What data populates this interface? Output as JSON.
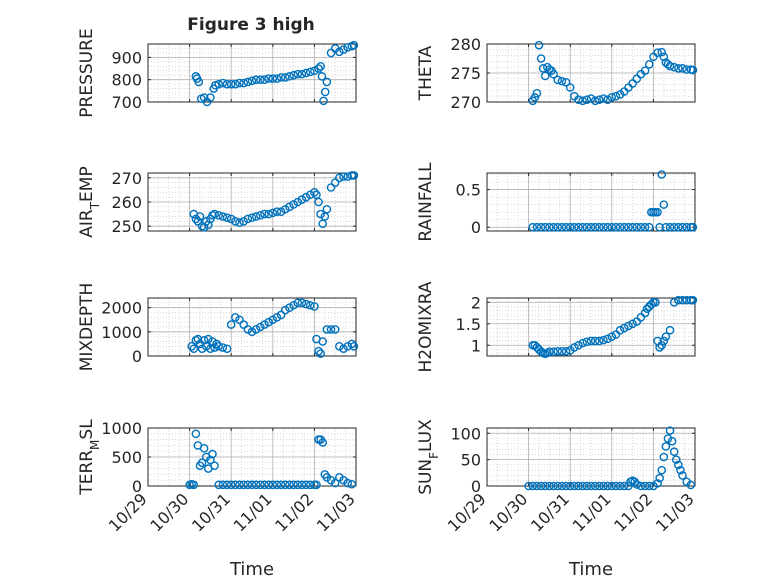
{
  "figure": {
    "title": "Figure 3 high"
  },
  "colors": {
    "marker": "#0072BD",
    "axis": "#262626",
    "grid": "#b0b0b0",
    "minor_grid": "#c8c8c8"
  },
  "time_ticks": [
    "10/29",
    "10/30",
    "10/31",
    "11/01",
    "11/02",
    "11/03"
  ],
  "chart_data": [
    {
      "type": "scatter",
      "ylabel": "PRESSURE",
      "title": "Figure 3 high",
      "xlim": [
        0,
        5
      ],
      "ylim": [
        700,
        960
      ],
      "yticks": [
        700,
        800,
        900
      ],
      "x": [
        1.15,
        1.18,
        1.22,
        1.28,
        1.35,
        1.42,
        1.5,
        1.58,
        1.62,
        1.7,
        1.8,
        1.9,
        2.0,
        2.1,
        2.2,
        2.3,
        2.4,
        2.5,
        2.6,
        2.7,
        2.8,
        2.9,
        3.0,
        3.1,
        3.2,
        3.3,
        3.4,
        3.5,
        3.6,
        3.7,
        3.8,
        3.9,
        4.0,
        4.1,
        4.15,
        4.18,
        4.22,
        4.26,
        4.3,
        4.4,
        4.5,
        4.6,
        4.7,
        4.8,
        4.9,
        4.95
      ],
      "y": [
        815,
        805,
        790,
        715,
        720,
        700,
        720,
        760,
        775,
        780,
        785,
        780,
        780,
        780,
        785,
        785,
        790,
        795,
        800,
        800,
        800,
        805,
        805,
        805,
        810,
        810,
        815,
        820,
        825,
        825,
        830,
        835,
        840,
        850,
        860,
        815,
        705,
        745,
        790,
        920,
        940,
        925,
        935,
        945,
        950,
        955
      ],
      "xlabel": "Time",
      "xtick_labels": [
        "10/29",
        "10/30",
        "10/31",
        "11/01",
        "11/02",
        "11/03"
      ]
    },
    {
      "type": "scatter",
      "ylabel": "THETA",
      "xlim": [
        0,
        5
      ],
      "ylim": [
        270,
        280
      ],
      "yticks": [
        270,
        275,
        280
      ],
      "x": [
        1.1,
        1.15,
        1.2,
        1.25,
        1.3,
        1.35,
        1.4,
        1.45,
        1.5,
        1.55,
        1.6,
        1.7,
        1.8,
        1.9,
        2.0,
        2.1,
        2.2,
        2.3,
        2.4,
        2.5,
        2.6,
        2.7,
        2.8,
        2.9,
        3.0,
        3.1,
        3.2,
        3.3,
        3.4,
        3.5,
        3.6,
        3.7,
        3.8,
        3.9,
        4.0,
        4.1,
        4.2,
        4.25,
        4.3,
        4.35,
        4.4,
        4.5,
        4.6,
        4.7,
        4.8,
        4.9,
        4.95
      ],
      "y": [
        270.2,
        270.8,
        271.5,
        279.8,
        277.5,
        275.8,
        274.5,
        276,
        275.6,
        275.4,
        274.8,
        273.8,
        273.6,
        273.4,
        272.5,
        271,
        270.4,
        270.2,
        270.4,
        270.6,
        270.2,
        270.4,
        270.6,
        270.4,
        270.8,
        271,
        271.3,
        271.8,
        272.5,
        273.2,
        274,
        274.8,
        275.4,
        276.5,
        277.8,
        278.5,
        278.6,
        277.8,
        276.8,
        276.5,
        276.2,
        276,
        275.8,
        275.8,
        275.6,
        275.6,
        275.5
      ],
      "xlabel": "Time",
      "xtick_labels": [
        "10/29",
        "10/30",
        "10/31",
        "11/01",
        "11/02",
        "11/03"
      ]
    },
    {
      "type": "scatter",
      "ylabel": "AIR_TEMP",
      "xlim": [
        0,
        5
      ],
      "ylim": [
        248,
        272
      ],
      "yticks": [
        250,
        260,
        270
      ],
      "x": [
        1.1,
        1.15,
        1.2,
        1.25,
        1.3,
        1.35,
        1.4,
        1.45,
        1.5,
        1.55,
        1.6,
        1.7,
        1.8,
        1.9,
        2.0,
        2.1,
        2.2,
        2.3,
        2.4,
        2.5,
        2.6,
        2.7,
        2.8,
        2.9,
        3.0,
        3.1,
        3.2,
        3.3,
        3.4,
        3.5,
        3.6,
        3.7,
        3.8,
        3.9,
        4.0,
        4.05,
        4.1,
        4.15,
        4.2,
        4.25,
        4.3,
        4.4,
        4.5,
        4.6,
        4.7,
        4.8,
        4.9,
        4.95
      ],
      "y": [
        255,
        253,
        252,
        254,
        250,
        249.5,
        252,
        250.5,
        253,
        254.5,
        255,
        254.5,
        254,
        253.5,
        253,
        252,
        251.5,
        252,
        253,
        253.5,
        254,
        254.5,
        255,
        255,
        255.5,
        256,
        256,
        257,
        258,
        259,
        260,
        261,
        262,
        263,
        264,
        263,
        260,
        255,
        251,
        254,
        257,
        266,
        268,
        270,
        270.5,
        270.5,
        271,
        271
      ],
      "xlabel": "Time",
      "xtick_labels": [
        "10/29",
        "10/30",
        "10/31",
        "11/01",
        "11/02",
        "11/03"
      ]
    },
    {
      "type": "scatter",
      "ylabel": "RAINFALL",
      "xlim": [
        0,
        5
      ],
      "ylim": [
        -0.05,
        0.72
      ],
      "yticks": [
        0,
        0.5
      ],
      "x": [
        1.1,
        1.2,
        1.3,
        1.4,
        1.5,
        1.6,
        1.7,
        1.8,
        1.9,
        2.0,
        2.1,
        2.2,
        2.3,
        2.4,
        2.5,
        2.6,
        2.7,
        2.8,
        2.9,
        3.0,
        3.1,
        3.2,
        3.3,
        3.4,
        3.5,
        3.6,
        3.7,
        3.8,
        3.9,
        3.95,
        4.0,
        4.05,
        4.1,
        4.15,
        4.2,
        4.25,
        4.3,
        4.4,
        4.5,
        4.6,
        4.7,
        4.8,
        4.9,
        4.95
      ],
      "y": [
        0,
        0,
        0,
        0,
        0,
        0,
        0,
        0,
        0,
        0,
        0,
        0,
        0,
        0,
        0,
        0,
        0,
        0,
        0,
        0,
        0,
        0,
        0,
        0,
        0,
        0,
        0,
        0,
        0,
        0.2,
        0.2,
        0.2,
        0.2,
        0,
        0.7,
        0.3,
        0,
        0,
        0,
        0,
        0,
        0,
        0,
        0
      ],
      "xlabel": "Time",
      "xtick_labels": [
        "10/29",
        "10/30",
        "10/31",
        "11/01",
        "11/02",
        "11/03"
      ]
    },
    {
      "type": "scatter",
      "ylabel": "MIXDEPTH",
      "xlim": [
        0,
        5
      ],
      "ylim": [
        0,
        2400
      ],
      "yticks": [
        0,
        1000,
        2000
      ],
      "x": [
        1.05,
        1.1,
        1.15,
        1.2,
        1.25,
        1.3,
        1.35,
        1.4,
        1.45,
        1.5,
        1.55,
        1.6,
        1.65,
        1.7,
        1.8,
        1.9,
        2.0,
        2.1,
        2.2,
        2.3,
        2.4,
        2.5,
        2.6,
        2.7,
        2.8,
        2.9,
        3.0,
        3.1,
        3.2,
        3.3,
        3.4,
        3.5,
        3.6,
        3.7,
        3.8,
        3.9,
        4.0,
        4.05,
        4.1,
        4.15,
        4.2,
        4.3,
        4.4,
        4.5,
        4.6,
        4.7,
        4.8,
        4.9,
        4.95
      ],
      "y": [
        400,
        300,
        650,
        700,
        500,
        300,
        650,
        400,
        700,
        300,
        600,
        350,
        500,
        400,
        350,
        300,
        1300,
        1600,
        1500,
        1300,
        1100,
        1000,
        1100,
        1200,
        1300,
        1400,
        1500,
        1600,
        1700,
        1900,
        2000,
        2100,
        2200,
        2200,
        2150,
        2100,
        2050,
        700,
        200,
        100,
        600,
        1100,
        1100,
        1100,
        400,
        300,
        400,
        500,
        400
      ],
      "xlabel": "Time",
      "xtick_labels": [
        "10/29",
        "10/30",
        "10/31",
        "11/01",
        "11/02",
        "11/03"
      ]
    },
    {
      "type": "scatter",
      "ylabel": "H2OMIXRA",
      "xlim": [
        0,
        5
      ],
      "ylim": [
        0.75,
        2.1
      ],
      "yticks": [
        1,
        1.5,
        2
      ],
      "x": [
        1.1,
        1.15,
        1.2,
        1.25,
        1.3,
        1.35,
        1.4,
        1.45,
        1.5,
        1.6,
        1.7,
        1.8,
        1.9,
        2.0,
        2.1,
        2.2,
        2.3,
        2.4,
        2.5,
        2.6,
        2.7,
        2.8,
        2.9,
        3.0,
        3.1,
        3.2,
        3.3,
        3.4,
        3.5,
        3.6,
        3.7,
        3.8,
        3.85,
        3.9,
        3.95,
        4.0,
        4.05,
        4.1,
        4.15,
        4.2,
        4.25,
        4.3,
        4.4,
        4.5,
        4.6,
        4.7,
        4.8,
        4.9,
        4.95
      ],
      "y": [
        1.0,
        1.0,
        0.95,
        0.9,
        0.85,
        0.82,
        0.8,
        0.82,
        0.85,
        0.85,
        0.86,
        0.86,
        0.86,
        0.88,
        0.95,
        1.0,
        1.05,
        1.08,
        1.1,
        1.1,
        1.1,
        1.12,
        1.15,
        1.2,
        1.25,
        1.35,
        1.4,
        1.45,
        1.5,
        1.55,
        1.65,
        1.75,
        1.85,
        1.9,
        1.95,
        2.0,
        2.0,
        1.1,
        0.95,
        1.0,
        1.1,
        1.2,
        1.35,
        2.0,
        2.05,
        2.05,
        2.05,
        2.05,
        2.05
      ],
      "xlabel": "Time",
      "xtick_labels": [
        "10/29",
        "10/30",
        "10/31",
        "11/01",
        "11/02",
        "11/03"
      ]
    },
    {
      "type": "scatter",
      "ylabel": "TERR_MSL",
      "xlim": [
        0,
        5
      ],
      "ylim": [
        0,
        1000
      ],
      "yticks": [
        0,
        500,
        1000
      ],
      "x": [
        1.0,
        1.05,
        1.1,
        1.15,
        1.2,
        1.25,
        1.3,
        1.35,
        1.4,
        1.45,
        1.5,
        1.55,
        1.6,
        1.7,
        1.8,
        1.9,
        2.0,
        2.1,
        2.2,
        2.3,
        2.4,
        2.5,
        2.6,
        2.7,
        2.8,
        2.9,
        3.0,
        3.1,
        3.2,
        3.3,
        3.4,
        3.5,
        3.6,
        3.7,
        3.8,
        3.9,
        4.0,
        4.05,
        4.1,
        4.15,
        4.2,
        4.25,
        4.3,
        4.4,
        4.5,
        4.6,
        4.7,
        4.8,
        4.9
      ],
      "y": [
        20,
        30,
        20,
        900,
        700,
        350,
        400,
        650,
        500,
        300,
        450,
        550,
        350,
        20,
        20,
        20,
        20,
        20,
        20,
        20,
        20,
        20,
        20,
        20,
        20,
        20,
        20,
        20,
        20,
        20,
        20,
        20,
        20,
        20,
        20,
        20,
        20,
        20,
        800,
        800,
        750,
        200,
        150,
        100,
        50,
        150,
        100,
        50,
        30
      ],
      "xlabel": "Time",
      "xtick_labels": [
        "10/29",
        "10/30",
        "10/31",
        "11/01",
        "11/02",
        "11/03"
      ]
    },
    {
      "type": "scatter",
      "ylabel": "SUN_FLUX",
      "xlim": [
        0,
        5
      ],
      "ylim": [
        0,
        110
      ],
      "yticks": [
        0,
        50,
        100
      ],
      "x": [
        1.0,
        1.1,
        1.2,
        1.3,
        1.4,
        1.5,
        1.6,
        1.7,
        1.8,
        1.9,
        2.0,
        2.1,
        2.2,
        2.3,
        2.4,
        2.5,
        2.6,
        2.7,
        2.8,
        2.9,
        3.0,
        3.1,
        3.2,
        3.3,
        3.4,
        3.45,
        3.5,
        3.55,
        3.6,
        3.7,
        3.8,
        3.9,
        4.0,
        4.1,
        4.15,
        4.2,
        4.25,
        4.3,
        4.35,
        4.4,
        4.45,
        4.5,
        4.55,
        4.6,
        4.65,
        4.7,
        4.8,
        4.9
      ],
      "y": [
        0,
        0,
        0,
        0,
        0,
        0,
        0,
        0,
        0,
        0,
        0,
        0,
        0,
        0,
        0,
        0,
        0,
        0,
        0,
        0,
        0,
        0,
        0,
        0,
        0,
        8,
        10,
        8,
        3,
        0,
        0,
        0,
        0,
        5,
        15,
        30,
        55,
        75,
        90,
        105,
        85,
        65,
        50,
        40,
        30,
        20,
        8,
        2
      ],
      "xlabel": "Time",
      "xtick_labels": [
        "10/29",
        "10/30",
        "10/31",
        "11/01",
        "11/02",
        "11/03"
      ]
    }
  ]
}
